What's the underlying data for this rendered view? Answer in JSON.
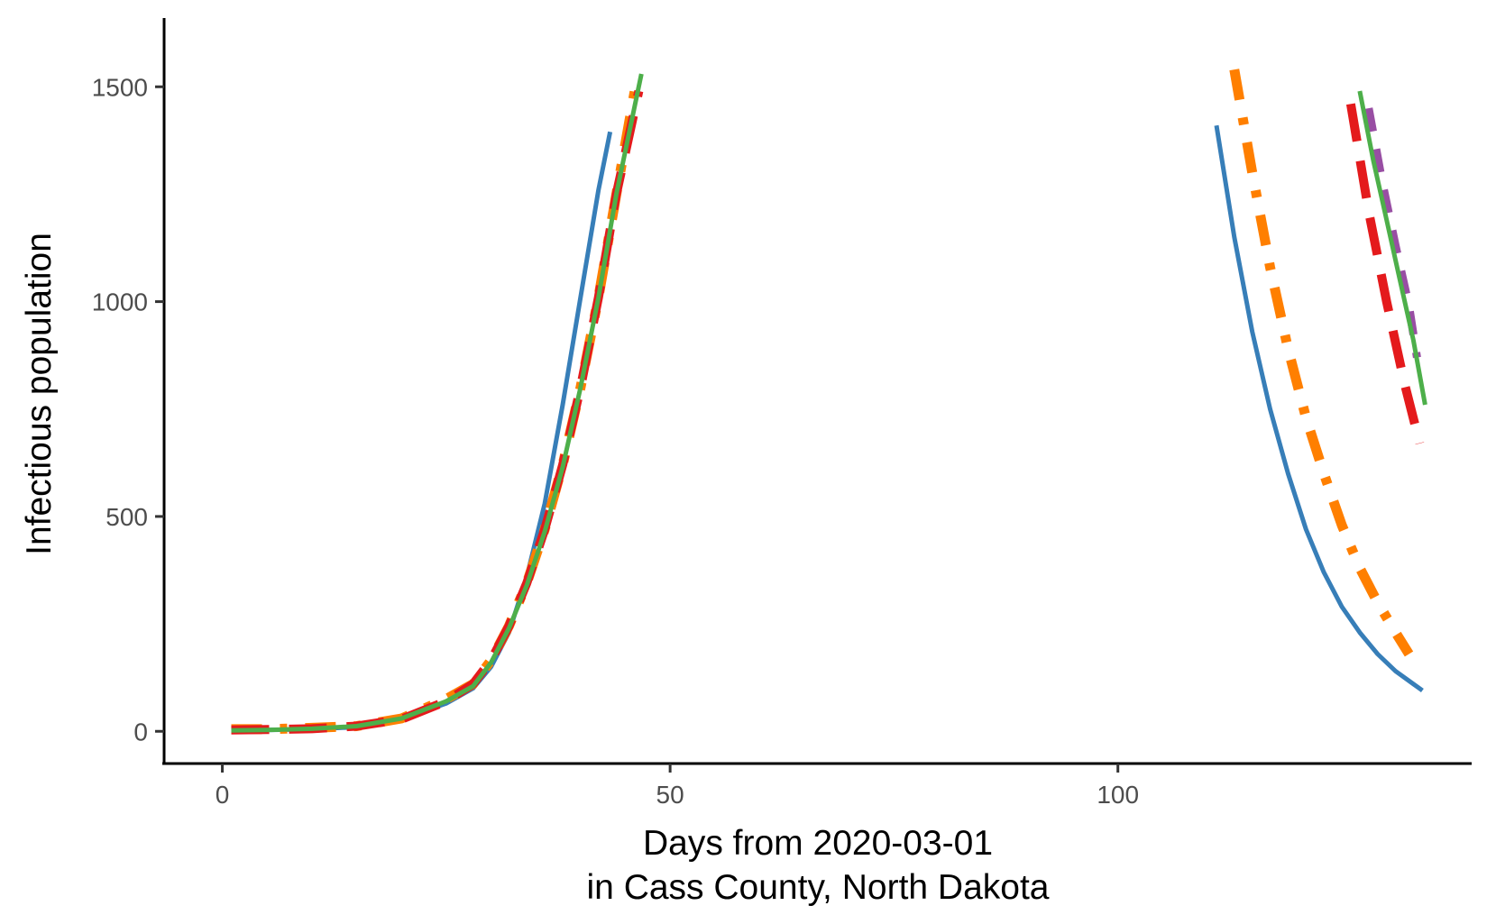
{
  "chart_data": {
    "type": "line",
    "title": "",
    "xlabel_line1": "Days from 2020-03-01",
    "xlabel_line2": "in Cass County, North Dakota",
    "ylabel": "Infectious population",
    "xlim": [
      -6.5,
      139.5
    ],
    "ylim": [
      -75,
      1660
    ],
    "x_ticks": [
      0,
      50,
      100
    ],
    "y_ticks": [
      0,
      500,
      1000,
      1500
    ],
    "grid": false,
    "legend": "none",
    "series": [
      {
        "color": "#377eb8",
        "dash": "solid",
        "segments": [
          {
            "x": [
              1,
              5,
              10,
              15,
              20,
              25,
              28,
              30,
              32,
              34,
              36,
              38,
              40,
              42,
              43.3
            ],
            "y": [
              2,
              3,
              5,
              10,
              28,
              65,
              100,
              150,
              230,
              360,
              530,
              760,
              1010,
              1260,
              1395
            ]
          },
          {
            "x": [
              111,
              113,
              115,
              117,
              119,
              121,
              123,
              125,
              127,
              129,
              131,
              133,
              134
            ],
            "y": [
              1410,
              1150,
              930,
              750,
              600,
              470,
              370,
              290,
              230,
              180,
              140,
              110,
              95
            ]
          }
        ]
      },
      {
        "color": "#ff7f00",
        "dash": "dashdot",
        "segments": [
          {
            "x": [
              1,
              5,
              10,
              15,
              20,
              25,
              28,
              30,
              32,
              34,
              36,
              38,
              40,
              42,
              44,
              46.3
            ],
            "y": [
              5,
              5,
              8,
              12,
              30,
              75,
              110,
              165,
              245,
              345,
              470,
              620,
              800,
              1010,
              1250,
              1520
            ]
          },
          {
            "x": [
              113,
              115,
              117,
              119,
              121,
              123,
              125,
              127,
              129,
              131,
              132.5
            ],
            "y": [
              1540,
              1300,
              1080,
              890,
              730,
              600,
              480,
              380,
              300,
              230,
              180
            ]
          }
        ]
      },
      {
        "color": "#e41a1c",
        "dash": "longdash",
        "segments": [
          {
            "x": [
              1,
              5,
              10,
              15,
              20,
              25,
              28,
              30,
              32,
              34,
              36,
              38,
              40,
              42,
              44,
              46.5
            ],
            "y": [
              3,
              4,
              6,
              12,
              28,
              70,
              110,
              165,
              245,
              345,
              470,
              620,
              800,
              1010,
              1250,
              1490
            ]
          },
          {
            "x": [
              126,
              128,
              130,
              132,
              133.7
            ],
            "y": [
              1460,
              1210,
              1000,
              810,
              670
            ]
          }
        ]
      },
      {
        "color": "#984ea3",
        "dash": "dashed",
        "segments": [
          {
            "x": [
              128,
              129.5,
              131,
              132.5,
              133.4
            ],
            "y": [
              1450,
              1280,
              1130,
              990,
              870
            ]
          }
        ]
      },
      {
        "color": "#4daf4a",
        "dash": "solid",
        "segments": [
          {
            "x": [
              1,
              5,
              10,
              15,
              20,
              25,
              28,
              30,
              32,
              34,
              36,
              38,
              40,
              42,
              44,
              46.8
            ],
            "y": [
              2,
              3,
              6,
              12,
              30,
              70,
              105,
              160,
              240,
              340,
              465,
              615,
              800,
              1010,
              1250,
              1530
            ]
          },
          {
            "x": [
              127,
              128.5,
              130,
              131.5,
              133,
              134.3
            ],
            "y": [
              1490,
              1330,
              1190,
              1050,
              910,
              760
            ]
          }
        ]
      }
    ]
  }
}
